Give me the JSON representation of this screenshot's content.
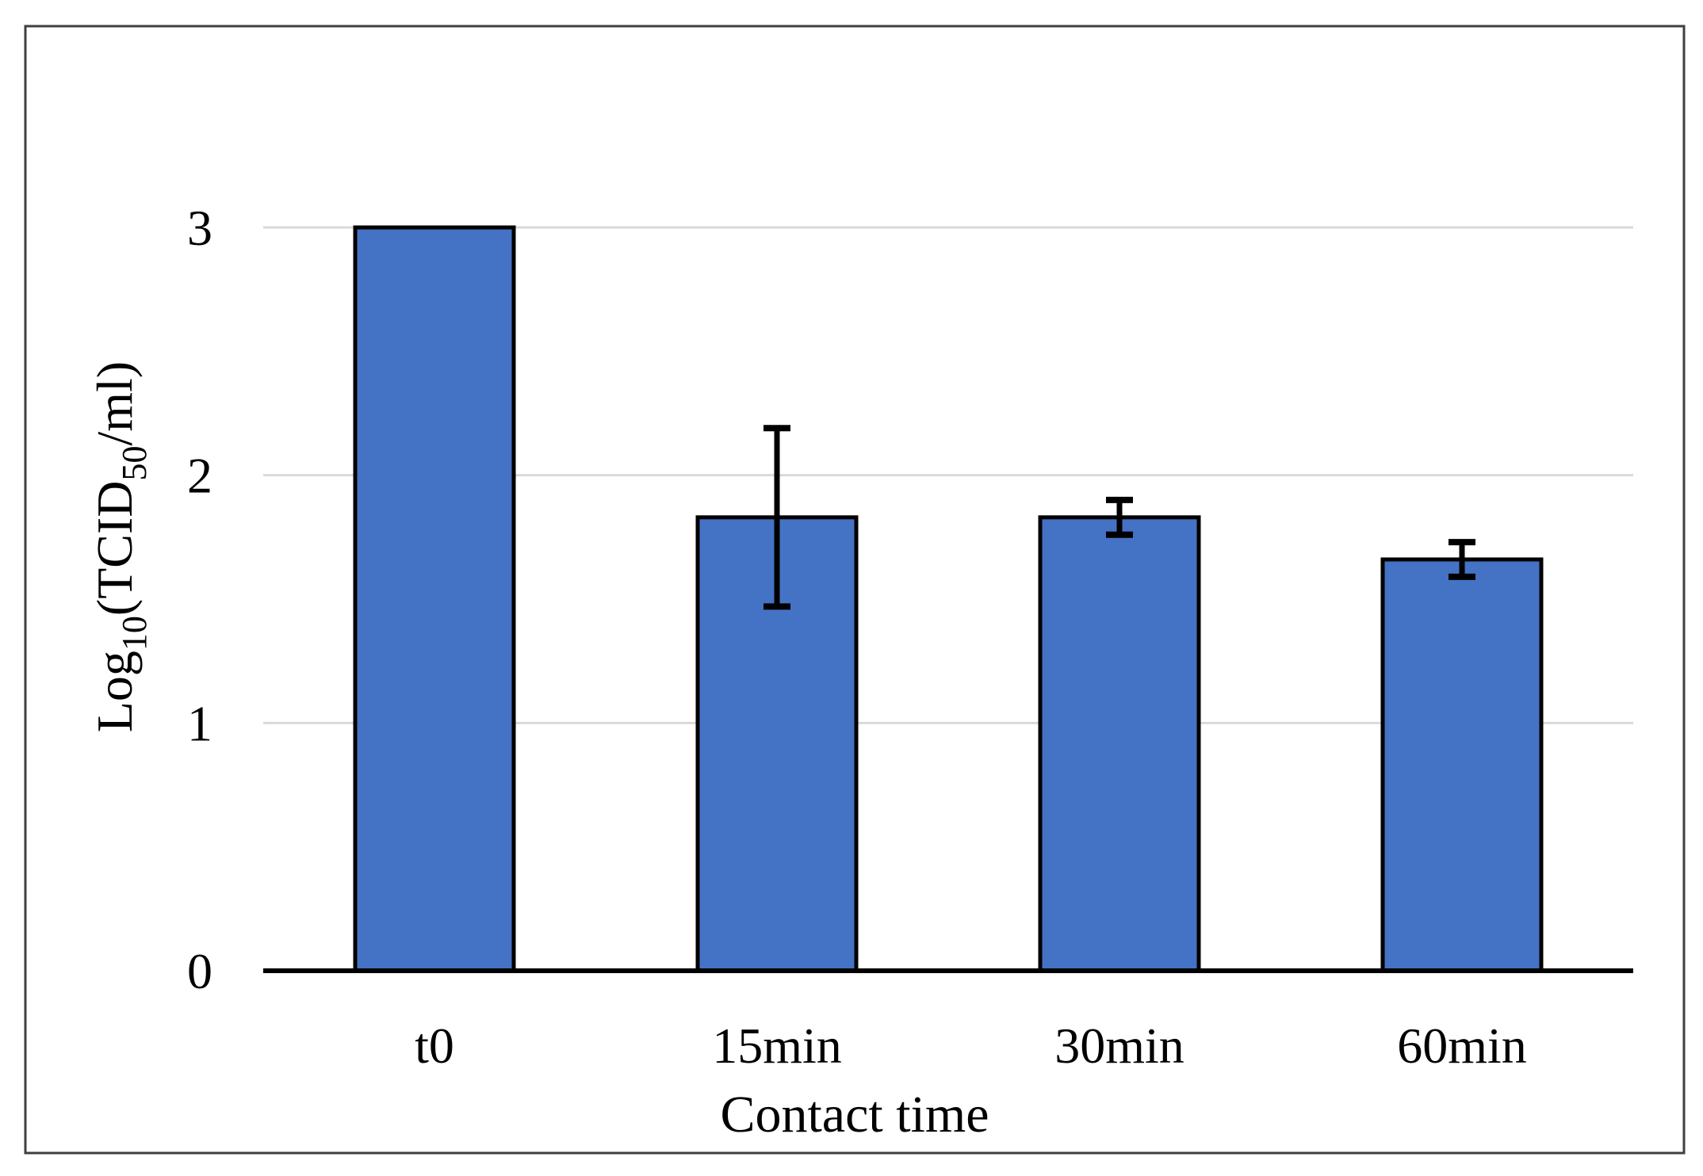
{
  "figure": {
    "description": "Scientific bar chart of viral titer versus contact time",
    "background_color": "#ffffff"
  },
  "chart_data": {
    "type": "bar",
    "title": "",
    "categories": [
      "t0",
      "15min",
      "30min",
      "60min"
    ],
    "values": [
      3.0,
      1.83,
      1.83,
      1.66
    ],
    "error_bars": [
      0,
      0.36,
      0.07,
      0.07
    ],
    "xlabel": "Contact time",
    "ylabel": "Log10(TCID50/ml)",
    "ylabel_parts": [
      {
        "text": "Log",
        "sub": false
      },
      {
        "text": "10",
        "sub": true
      },
      {
        "text": "(TCID",
        "sub": false
      },
      {
        "text": "50",
        "sub": true
      },
      {
        "text": "/ml)",
        "sub": false
      }
    ],
    "ylim": [
      0,
      3
    ],
    "yticks": [
      0,
      1,
      2,
      3
    ],
    "grid": "horizontal",
    "legend_position": "none",
    "colors": {
      "bar_fill": "#4472C4",
      "bar_border": "#000000",
      "error_bar": "#000000",
      "gridline": "#D9D9D9",
      "axis_line": "#000000",
      "frame_border": "#3F3F3F",
      "text": "#000000"
    }
  }
}
